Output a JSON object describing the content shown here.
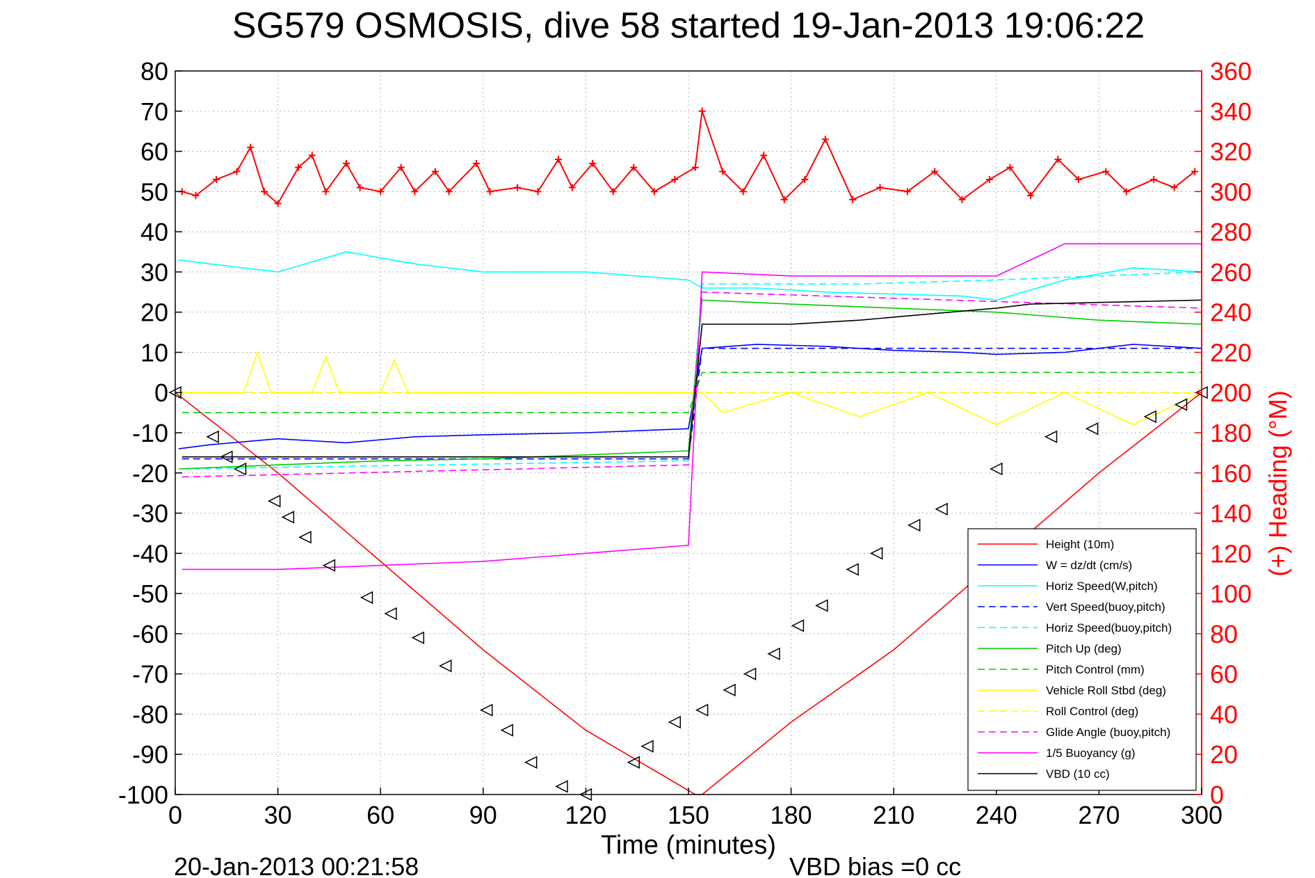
{
  "chart_data": {
    "type": "line",
    "title": "SG579 OSMOSIS, dive 58 started 19-Jan-2013 19:06:22",
    "xlabel": "Time (minutes)",
    "ylabel_left": "",
    "ylabel_right": "(+) Heading (°M)",
    "xlim": [
      0,
      300
    ],
    "ylim": [
      -100,
      80
    ],
    "ylim_right": [
      0,
      360
    ],
    "x_ticks": [
      0,
      30,
      60,
      90,
      120,
      150,
      180,
      210,
      240,
      270,
      300
    ],
    "x_tick_labels": [
      "0",
      "30",
      "60",
      "90",
      "120",
      "150",
      "180",
      "210",
      "240",
      "270",
      "300"
    ],
    "y_ticks": [
      80,
      70,
      60,
      50,
      40,
      30,
      20,
      10,
      0,
      -10,
      -20,
      -30,
      -40,
      -50,
      -60,
      -70,
      -80,
      -90,
      -100
    ],
    "y_tick_labels": [
      "80",
      "70",
      "60",
      "50",
      "40",
      "30",
      "20",
      "10",
      "0",
      "-10",
      "-20",
      "-30",
      "-40",
      "-50",
      "-60",
      "-70",
      "-80",
      "-90",
      "-100"
    ],
    "y_right_ticks": [
      360,
      340,
      320,
      300,
      280,
      260,
      240,
      220,
      200,
      180,
      160,
      140,
      120,
      100,
      80,
      60,
      40,
      20,
      0
    ],
    "y_right_tick_labels": [
      "360",
      "340",
      "320",
      "300",
      "280",
      "260",
      "240",
      "220",
      "200",
      "180",
      "160",
      "140",
      "120",
      "100",
      "80",
      "60",
      "40",
      "20",
      "0"
    ],
    "grid": true,
    "legend_position": "bottom-right",
    "footer_left": "20-Jan-2013 00:21:58",
    "footer_right": "VBD bias =0 cc",
    "colors": {
      "height": "#ff0000",
      "w": "#0000ff",
      "horiz_speed": "#00ffff",
      "pitch": "#00cc00",
      "roll": "#ffff00",
      "glide": "#ff00ff",
      "buoyancy": "#ff00ff",
      "vbd": "#000000",
      "heading": "#ff0000",
      "right_axis": "#ff0000"
    },
    "series": [
      {
        "name": "Height (10m)",
        "color": "#ff0000",
        "dash": "solid",
        "x": [
          0,
          30,
          60,
          90,
          120,
          152,
          154,
          180,
          210,
          240,
          270,
          300
        ],
        "y": [
          0,
          -20,
          -42,
          -64,
          -84,
          -100,
          -100,
          -82,
          -64,
          -42,
          -20,
          0
        ]
      },
      {
        "name": "W = dz/dt (cm/s)",
        "color": "#0000ff",
        "dash": "solid",
        "x": [
          1,
          10,
          30,
          50,
          70,
          90,
          120,
          150,
          154,
          170,
          190,
          210,
          230,
          240,
          260,
          280,
          300
        ],
        "y": [
          -14,
          -13,
          -11.5,
          -12.5,
          -11,
          -10.5,
          -10,
          -9,
          11,
          12,
          11.5,
          10.5,
          10,
          9.5,
          10,
          12,
          11
        ]
      },
      {
        "name": "Horiz Speed(W,pitch)",
        "color": "#00ffff",
        "dash": "solid",
        "x": [
          1,
          10,
          30,
          50,
          70,
          90,
          120,
          150,
          154,
          170,
          190,
          210,
          230,
          240,
          260,
          280,
          300
        ],
        "y": [
          33,
          32,
          30,
          35,
          32,
          30,
          30,
          28,
          26,
          26,
          25,
          24.5,
          24,
          23,
          28,
          31,
          30
        ]
      },
      {
        "name": "Vert Speed(buoy,pitch)",
        "color": "#0000ff",
        "dash": "dashed",
        "x": [
          2,
          150,
          154,
          300
        ],
        "y": [
          -16.5,
          -16.5,
          11,
          11
        ]
      },
      {
        "name": "Horiz Speed(buoy,pitch)",
        "color": "#00ffff",
        "dash": "dashed",
        "x": [
          2,
          150,
          154,
          200,
          240,
          300
        ],
        "y": [
          -19,
          -17,
          27,
          27,
          28,
          30
        ]
      },
      {
        "name": "Pitch Up (deg)",
        "color": "#00cc00",
        "dash": "solid",
        "x": [
          1,
          30,
          60,
          90,
          120,
          150,
          154,
          180,
          210,
          240,
          270,
          300
        ],
        "y": [
          -19,
          -18,
          -17,
          -16.5,
          -15.5,
          -14.5,
          23,
          22,
          21,
          20,
          18,
          17
        ]
      },
      {
        "name": "Pitch Control (mm)",
        "color": "#00cc00",
        "dash": "dashed",
        "x": [
          2,
          150,
          154,
          300
        ],
        "y": [
          -5,
          -5,
          5,
          5
        ]
      },
      {
        "name": "Vehicle Roll Stbd (deg)",
        "color": "#ffff00",
        "dash": "solid",
        "x": [
          1,
          20,
          24,
          28,
          40,
          44,
          48,
          60,
          64,
          68,
          90,
          120,
          150,
          154,
          160,
          180,
          200,
          220,
          240,
          260,
          280,
          300
        ],
        "y": [
          0,
          0,
          10,
          0,
          0,
          9,
          0,
          0,
          8,
          0,
          0,
          0,
          0,
          0,
          -5,
          0,
          -6,
          0,
          -8,
          0,
          -8,
          0
        ]
      },
      {
        "name": "Roll Control (deg)",
        "color": "#ffff00",
        "dash": "dashed",
        "x": [
          2,
          150,
          154,
          300
        ],
        "y": [
          0,
          0,
          0,
          0
        ]
      },
      {
        "name": "Glide Angle (buoy,pitch)",
        "color": "#ff00ff",
        "dash": "dashed",
        "x": [
          2,
          150,
          154,
          300
        ],
        "y": [
          -21,
          -18,
          25,
          21
        ]
      },
      {
        "name": "1/5 Buoyancy (g)",
        "color": "#ff00ff",
        "dash": "solid",
        "x": [
          2,
          30,
          60,
          90,
          120,
          150,
          154,
          180,
          220,
          240,
          250,
          260,
          300
        ],
        "y": [
          -44,
          -44,
          -43,
          -42,
          -40,
          -38,
          30,
          29,
          29,
          29,
          33,
          37,
          37
        ]
      },
      {
        "name": "VBD (10 cc)",
        "color": "#000000",
        "dash": "solid",
        "x": [
          2,
          150,
          154,
          180,
          200,
          240,
          250,
          300
        ],
        "y": [
          -16,
          -16,
          17,
          17,
          18,
          21,
          22,
          23
        ]
      }
    ],
    "heading_series": {
      "name": "(+) Heading",
      "color": "#ff0000",
      "marker": "+",
      "x": [
        2,
        6,
        12,
        18,
        22,
        26,
        30,
        36,
        40,
        44,
        50,
        54,
        60,
        66,
        70,
        76,
        80,
        88,
        92,
        100,
        106,
        112,
        116,
        122,
        128,
        134,
        140,
        146,
        152,
        154,
        160,
        166,
        172,
        178,
        184,
        190,
        198,
        206,
        214,
        222,
        230,
        238,
        244,
        250,
        258,
        264,
        272,
        278,
        286,
        292,
        298
      ],
      "y": [
        300,
        298,
        306,
        310,
        322,
        300,
        294,
        312,
        318,
        300,
        314,
        302,
        300,
        312,
        300,
        310,
        300,
        314,
        300,
        302,
        300,
        316,
        302,
        314,
        300,
        312,
        300,
        306,
        312,
        340,
        310,
        300,
        318,
        296,
        306,
        326,
        296,
        302,
        300,
        310,
        296,
        306,
        312,
        298,
        316,
        306,
        310,
        300,
        306,
        302,
        310
      ]
    },
    "markers_triangles": {
      "x": [
        0,
        11,
        15,
        19,
        29,
        33,
        38,
        45,
        56,
        63,
        71,
        79,
        91,
        97,
        104,
        113,
        120,
        134,
        138,
        146,
        154,
        162,
        168,
        175,
        182,
        189,
        198,
        205,
        216,
        224,
        240,
        256,
        268,
        285,
        294,
        300
      ],
      "y": [
        0,
        -11,
        -16,
        -19,
        -27,
        -31,
        -36,
        -43,
        -51,
        -55,
        -61,
        -68,
        -79,
        -84,
        -92,
        -98,
        -100,
        -92,
        -88,
        -82,
        -79,
        -74,
        -70,
        -65,
        -58,
        -53,
        -44,
        -40,
        -33,
        -29,
        -19,
        -11,
        -9,
        -6,
        -3,
        0
      ]
    }
  }
}
